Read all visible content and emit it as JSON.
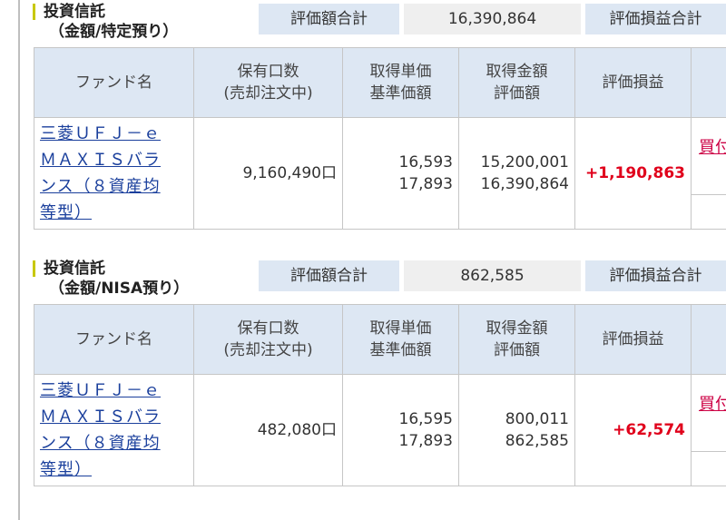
{
  "sections": [
    {
      "title": "投資信託",
      "subtitle": "（金額/特定預り）",
      "summary": {
        "valuation_label": "評価額合計",
        "valuation_value": "16,390,864",
        "pl_label": "評価損益合計"
      },
      "headers": {
        "fund_name": "ファンド名",
        "holdings_l1": "保有口数",
        "holdings_l2": "(売却注文中)",
        "unit_l1": "取得単価",
        "unit_l2": "基準価額",
        "amount_l1": "取得金額",
        "amount_l2": "評価額",
        "pl": "評価損益"
      },
      "row": {
        "fund_name_lines": [
          "三菱ＵＦＪ－ｅ",
          "ＭＡＸＩＳバラ",
          "ンス（８資産均",
          "等型）"
        ],
        "holdings": "9,160,490口",
        "acq_unit_price": "16,593",
        "base_price": "17,893",
        "acq_amount": "15,200,001",
        "valuation": "16,390,864",
        "pl": "+1,190,863",
        "action": "買付"
      }
    },
    {
      "title": "投資信託",
      "subtitle": "（金額/NISA預り）",
      "summary": {
        "valuation_label": "評価額合計",
        "valuation_value": "862,585",
        "pl_label": "評価損益合計"
      },
      "headers": {
        "fund_name": "ファンド名",
        "holdings_l1": "保有口数",
        "holdings_l2": "(売却注文中)",
        "unit_l1": "取得単価",
        "unit_l2": "基準価額",
        "amount_l1": "取得金額",
        "amount_l2": "評価額",
        "pl": "評価損益"
      },
      "row": {
        "fund_name_lines": [
          "三菱ＵＦＪ－ｅ",
          "ＭＡＸＩＳバラ",
          "ンス（８資産均",
          "等型）"
        ],
        "holdings": "482,080口",
        "acq_unit_price": "16,595",
        "base_price": "17,893",
        "acq_amount": "800,011",
        "valuation": "862,585",
        "pl": "+62,574",
        "action": "買付"
      }
    }
  ],
  "colors": {
    "header_bg": "#dde7f3",
    "value_bg": "#efefef",
    "link": "#1a3f9c",
    "profit": "#e0001b",
    "accent": "#c8c800"
  }
}
